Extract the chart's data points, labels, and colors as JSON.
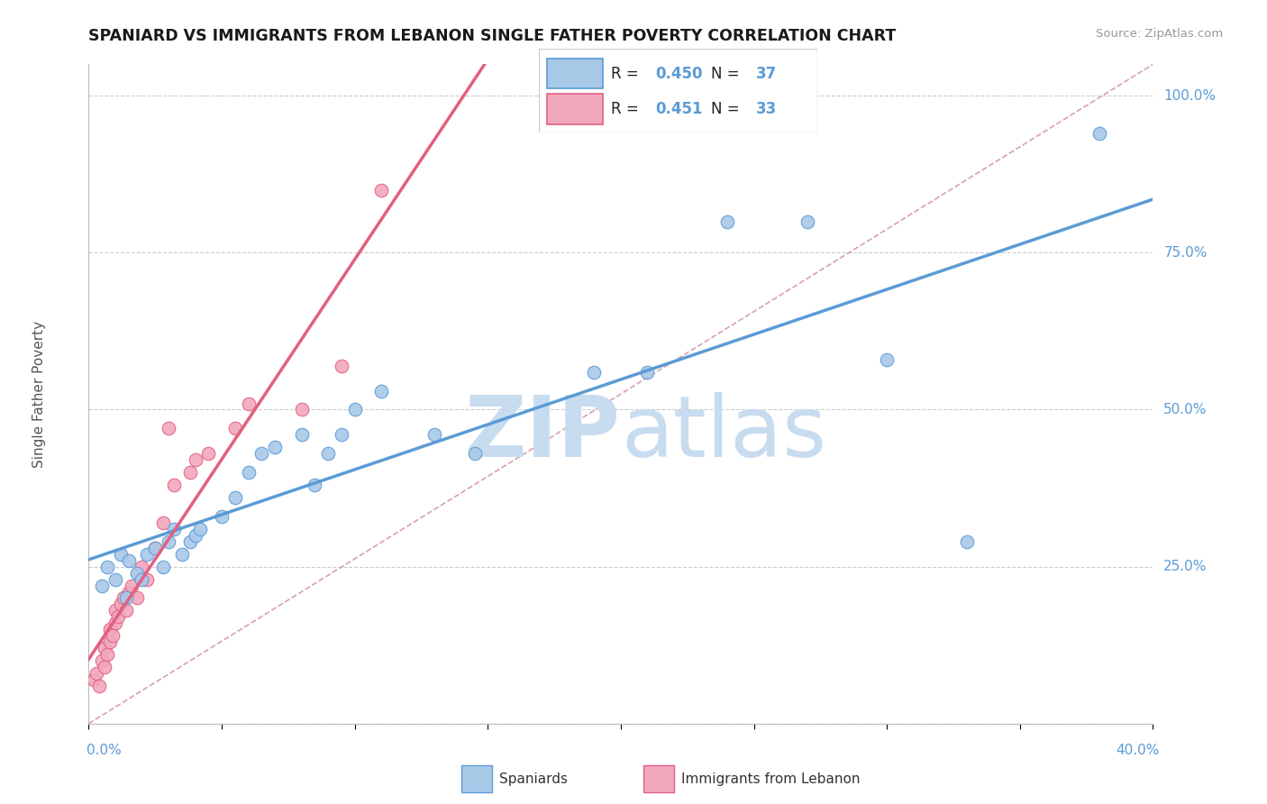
{
  "title": "SPANIARD VS IMMIGRANTS FROM LEBANON SINGLE FATHER POVERTY CORRELATION CHART",
  "source": "Source: ZipAtlas.com",
  "ylabel": "Single Father Poverty",
  "xmin": 0.0,
  "xmax": 0.4,
  "ymin": 0.0,
  "ymax": 1.05,
  "blue_R": 0.45,
  "blue_N": 37,
  "pink_R": 0.451,
  "pink_N": 33,
  "blue_color": "#A8C8E8",
  "pink_color": "#F2A8BC",
  "blue_edge_color": "#5B9BD5",
  "pink_edge_color": "#E06080",
  "blue_line_color": "#5B9BD5",
  "pink_line_color": "#E06080",
  "diagonal_color": "#D8A0B0",
  "watermark_color": "#D8EBF5",
  "legend_label_blue": "Spaniards",
  "legend_label_pink": "Immigrants from Lebanon",
  "background_color": "#FFFFFF",
  "grid_color": "#CCCCCC",
  "blue_scatter_x": [
    0.005,
    0.007,
    0.01,
    0.012,
    0.014,
    0.015,
    0.018,
    0.02,
    0.022,
    0.025,
    0.028,
    0.03,
    0.032,
    0.035,
    0.038,
    0.04,
    0.042,
    0.05,
    0.055,
    0.06,
    0.065,
    0.07,
    0.08,
    0.085,
    0.09,
    0.095,
    0.1,
    0.11,
    0.13,
    0.145,
    0.19,
    0.21,
    0.24,
    0.27,
    0.3,
    0.33,
    0.38
  ],
  "blue_scatter_y": [
    0.22,
    0.25,
    0.23,
    0.27,
    0.2,
    0.26,
    0.24,
    0.23,
    0.27,
    0.28,
    0.25,
    0.29,
    0.31,
    0.27,
    0.29,
    0.3,
    0.31,
    0.33,
    0.36,
    0.4,
    0.43,
    0.44,
    0.46,
    0.38,
    0.43,
    0.46,
    0.5,
    0.53,
    0.46,
    0.43,
    0.56,
    0.56,
    0.8,
    0.8,
    0.58,
    0.29,
    0.94
  ],
  "pink_scatter_x": [
    0.002,
    0.003,
    0.004,
    0.005,
    0.006,
    0.006,
    0.007,
    0.008,
    0.008,
    0.009,
    0.01,
    0.01,
    0.011,
    0.012,
    0.013,
    0.014,
    0.015,
    0.016,
    0.018,
    0.02,
    0.022,
    0.025,
    0.028,
    0.032,
    0.038,
    0.04,
    0.045,
    0.055,
    0.06,
    0.08,
    0.095,
    0.11,
    0.03
  ],
  "pink_scatter_y": [
    0.07,
    0.08,
    0.06,
    0.1,
    0.09,
    0.12,
    0.11,
    0.13,
    0.15,
    0.14,
    0.16,
    0.18,
    0.17,
    0.19,
    0.2,
    0.18,
    0.21,
    0.22,
    0.2,
    0.25,
    0.23,
    0.28,
    0.32,
    0.38,
    0.4,
    0.42,
    0.43,
    0.47,
    0.51,
    0.5,
    0.57,
    0.85,
    0.47
  ]
}
